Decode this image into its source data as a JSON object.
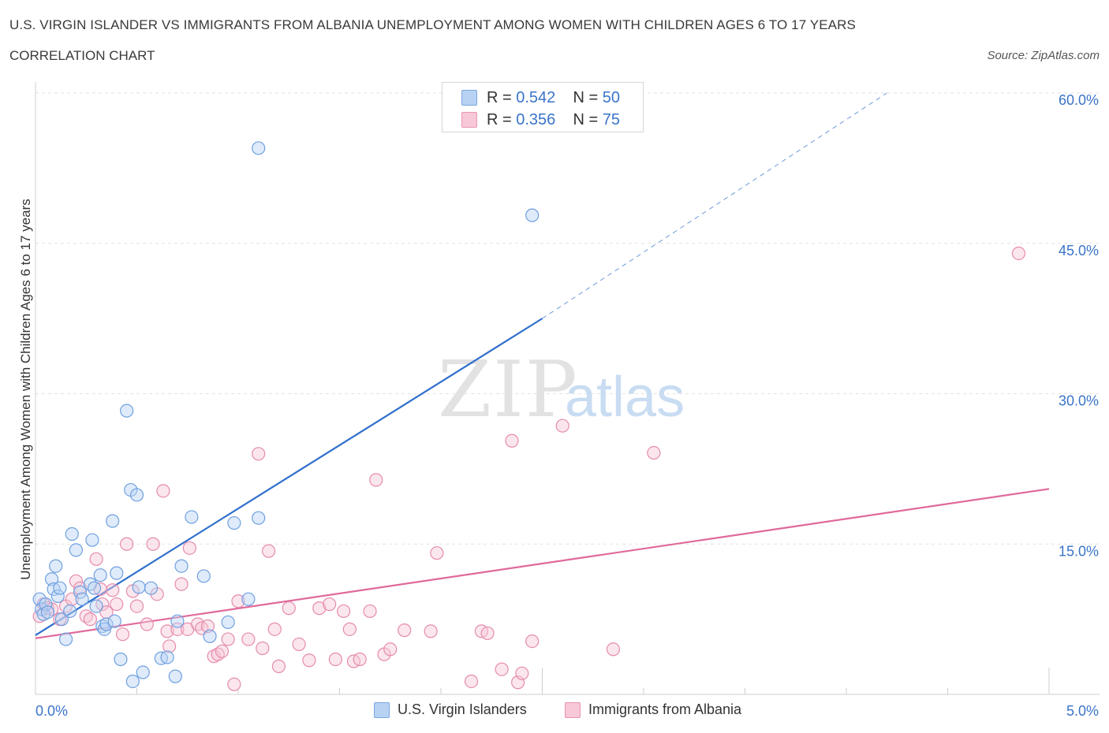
{
  "header": {
    "title": "U.S. VIRGIN ISLANDER VS IMMIGRANTS FROM ALBANIA UNEMPLOYMENT AMONG WOMEN WITH CHILDREN AGES 6 TO 17 YEARS",
    "subtitle": "CORRELATION CHART",
    "source": "Source: ZipAtlas.com"
  },
  "legend": {
    "series": [
      {
        "r_label": "R =",
        "r_value": "0.542",
        "n_label": "N =",
        "n_value": "50",
        "color": "#a9c8f0",
        "border": "#7aa6e0"
      },
      {
        "r_label": "R =",
        "r_value": "0.356",
        "n_label": "N =",
        "n_value": "75",
        "color": "#f7c1d2",
        "border": "#e993b1"
      }
    ]
  },
  "watermark": {
    "zip": "ZIP",
    "atlas": "atlas"
  },
  "chart_data": {
    "type": "scatter",
    "title": "U.S. VIRGIN ISLANDER VS IMMIGRANTS FROM ALBANIA UNEMPLOYMENT AMONG WOMEN WITH CHILDREN AGES 6 TO 17 YEARS",
    "xlabel": "",
    "ylabel": "Unemployment Among Women with Children Ages 6 to 17 years",
    "xlim": [
      0,
      5
    ],
    "ylim": [
      0,
      60
    ],
    "x_tick_labels": [
      "0.0%",
      "5.0%"
    ],
    "y_tick_labels": [
      "15.0%",
      "30.0%",
      "45.0%",
      "60.0%"
    ],
    "y_ticks": [
      15,
      30,
      45,
      60
    ],
    "grid": "horizontal dashed",
    "legend_position": "bottom",
    "series": [
      {
        "name": "U.S. Virgin Islanders",
        "color": "#6fa0e0",
        "fill": "#b8d2f3",
        "trend": {
          "x": [
            0.0,
            2.5
          ],
          "y": [
            5.9,
            37.5
          ],
          "extended_to": [
            4.2,
            60.0
          ]
        },
        "points": [
          [
            0.02,
            9.5
          ],
          [
            0.03,
            8.5
          ],
          [
            0.04,
            8.0
          ],
          [
            0.05,
            9.0
          ],
          [
            0.06,
            8.2
          ],
          [
            0.08,
            11.5
          ],
          [
            0.09,
            10.5
          ],
          [
            0.1,
            12.8
          ],
          [
            0.11,
            9.8
          ],
          [
            0.12,
            10.6
          ],
          [
            0.13,
            7.5
          ],
          [
            0.15,
            5.5
          ],
          [
            0.17,
            8.3
          ],
          [
            0.18,
            16.0
          ],
          [
            0.2,
            14.4
          ],
          [
            0.22,
            10.2
          ],
          [
            0.23,
            9.5
          ],
          [
            0.27,
            11.0
          ],
          [
            0.28,
            15.4
          ],
          [
            0.29,
            10.6
          ],
          [
            0.3,
            8.8
          ],
          [
            0.32,
            11.9
          ],
          [
            0.33,
            6.8
          ],
          [
            0.34,
            6.5
          ],
          [
            0.35,
            7.0
          ],
          [
            0.38,
            17.3
          ],
          [
            0.39,
            7.3
          ],
          [
            0.4,
            12.1
          ],
          [
            0.42,
            3.5
          ],
          [
            0.45,
            28.3
          ],
          [
            0.47,
            20.4
          ],
          [
            0.48,
            1.3
          ],
          [
            0.5,
            19.9
          ],
          [
            0.51,
            10.7
          ],
          [
            0.53,
            2.2
          ],
          [
            0.57,
            10.6
          ],
          [
            0.62,
            3.6
          ],
          [
            0.65,
            3.7
          ],
          [
            0.69,
            1.8
          ],
          [
            0.7,
            7.3
          ],
          [
            0.72,
            12.8
          ],
          [
            0.77,
            17.7
          ],
          [
            0.83,
            11.8
          ],
          [
            0.86,
            5.8
          ],
          [
            0.95,
            7.2
          ],
          [
            0.98,
            17.1
          ],
          [
            1.05,
            9.5
          ],
          [
            1.1,
            17.6
          ],
          [
            1.1,
            54.5
          ],
          [
            2.45,
            47.8
          ]
        ]
      },
      {
        "name": "Immigrants from Albania",
        "color": "#e58bad",
        "fill": "#f7c8d8",
        "trend": {
          "x": [
            0.0,
            5.0
          ],
          "y": [
            5.6,
            20.5
          ]
        },
        "points": [
          [
            0.02,
            7.8
          ],
          [
            0.04,
            9.0
          ],
          [
            0.06,
            8.6
          ],
          [
            0.08,
            8.5
          ],
          [
            0.12,
            7.5
          ],
          [
            0.15,
            8.8
          ],
          [
            0.18,
            9.5
          ],
          [
            0.2,
            11.3
          ],
          [
            0.22,
            10.6
          ],
          [
            0.25,
            7.8
          ],
          [
            0.27,
            7.5
          ],
          [
            0.3,
            13.5
          ],
          [
            0.32,
            10.5
          ],
          [
            0.33,
            9.0
          ],
          [
            0.35,
            8.2
          ],
          [
            0.38,
            10.4
          ],
          [
            0.4,
            9.0
          ],
          [
            0.43,
            6.0
          ],
          [
            0.45,
            15.0
          ],
          [
            0.48,
            10.3
          ],
          [
            0.5,
            8.8
          ],
          [
            0.55,
            7.0
          ],
          [
            0.58,
            15.0
          ],
          [
            0.6,
            10.0
          ],
          [
            0.63,
            20.3
          ],
          [
            0.65,
            6.3
          ],
          [
            0.66,
            4.8
          ],
          [
            0.7,
            6.5
          ],
          [
            0.72,
            11.0
          ],
          [
            0.75,
            6.5
          ],
          [
            0.76,
            14.6
          ],
          [
            0.8,
            7.0
          ],
          [
            0.82,
            6.6
          ],
          [
            0.85,
            6.8
          ],
          [
            0.88,
            3.8
          ],
          [
            0.9,
            4.0
          ],
          [
            0.92,
            4.3
          ],
          [
            0.95,
            5.5
          ],
          [
            0.98,
            1.0
          ],
          [
            1.0,
            9.3
          ],
          [
            1.05,
            5.5
          ],
          [
            1.1,
            24.0
          ],
          [
            1.12,
            4.6
          ],
          [
            1.15,
            14.3
          ],
          [
            1.18,
            6.5
          ],
          [
            1.2,
            2.8
          ],
          [
            1.25,
            8.6
          ],
          [
            1.3,
            5.0
          ],
          [
            1.35,
            3.4
          ],
          [
            1.4,
            8.6
          ],
          [
            1.45,
            9.0
          ],
          [
            1.48,
            3.5
          ],
          [
            1.52,
            8.3
          ],
          [
            1.55,
            6.5
          ],
          [
            1.57,
            3.3
          ],
          [
            1.6,
            3.5
          ],
          [
            1.65,
            8.3
          ],
          [
            1.68,
            21.4
          ],
          [
            1.72,
            4.0
          ],
          [
            1.75,
            4.5
          ],
          [
            1.82,
            6.4
          ],
          [
            1.95,
            6.3
          ],
          [
            1.98,
            14.1
          ],
          [
            2.15,
            1.3
          ],
          [
            2.2,
            6.3
          ],
          [
            2.23,
            6.1
          ],
          [
            2.3,
            2.5
          ],
          [
            2.35,
            25.3
          ],
          [
            2.38,
            1.2
          ],
          [
            2.4,
            2.1
          ],
          [
            2.45,
            5.3
          ],
          [
            2.6,
            26.8
          ],
          [
            2.85,
            4.5
          ],
          [
            3.05,
            24.1
          ],
          [
            4.85,
            44.0
          ]
        ]
      }
    ]
  }
}
